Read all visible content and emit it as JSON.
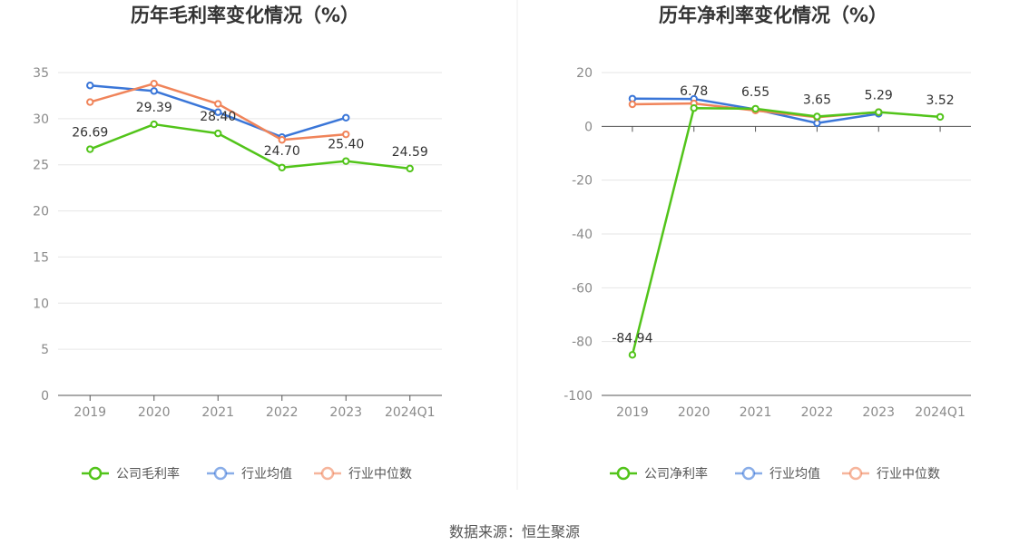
{
  "chart_data": [
    {
      "type": "line",
      "title": "历年毛利率变化情况（%）",
      "categories": [
        "2019",
        "2020",
        "2021",
        "2022",
        "2023",
        "2024Q1"
      ],
      "ylim": [
        0,
        35
      ],
      "yticks": [
        0,
        5,
        10,
        15,
        20,
        25,
        30,
        35
      ],
      "grid": true,
      "legend_position": "bottom",
      "series": [
        {
          "name": "公司毛利率",
          "color": "#52c41a",
          "values": [
            26.69,
            29.39,
            28.4,
            24.7,
            25.4,
            24.59
          ],
          "labels": [
            "26.69",
            "29.39",
            "28.40",
            "24.70",
            "25.40",
            "24.59"
          ]
        },
        {
          "name": "行业均值",
          "color": "#3a76d8",
          "values": [
            33.6,
            33.0,
            30.7,
            28.0,
            30.1,
            null
          ]
        },
        {
          "name": "行业中位数",
          "color": "#f0845a",
          "values": [
            31.8,
            33.8,
            31.6,
            27.7,
            28.3,
            null
          ]
        }
      ]
    },
    {
      "type": "line",
      "title": "历年净利率变化情况（%）",
      "categories": [
        "2019",
        "2020",
        "2021",
        "2022",
        "2023",
        "2024Q1"
      ],
      "ylim": [
        -100,
        20
      ],
      "yticks": [
        -100,
        -80,
        -60,
        -40,
        -20,
        0,
        20
      ],
      "grid": true,
      "legend_position": "bottom",
      "series": [
        {
          "name": "公司净利率",
          "color": "#52c41a",
          "values": [
            -84.94,
            6.78,
            6.55,
            3.65,
            5.29,
            3.52
          ],
          "labels": [
            "-84.94",
            "6.78",
            "6.55",
            "3.65",
            "5.29",
            "3.52"
          ]
        },
        {
          "name": "行业均值",
          "color": "#3a76d8",
          "values": [
            10.3,
            10.2,
            6.3,
            1.2,
            4.7,
            null
          ]
        },
        {
          "name": "行业中位数",
          "color": "#f0845a",
          "values": [
            8.2,
            8.5,
            5.9,
            3.4,
            5.3,
            null
          ]
        }
      ]
    }
  ],
  "source_text": "数据来源：恒生聚源"
}
